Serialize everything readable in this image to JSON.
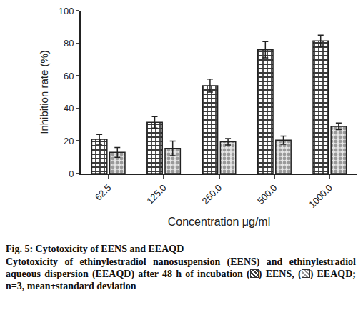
{
  "chart_data": {
    "type": "bar",
    "y_label": "Inhibition rate (%)",
    "x_label": "Concentration μg/ml",
    "categories": [
      "62.5",
      "125.0",
      "250.0",
      "500.0",
      "1000.0"
    ],
    "series": [
      {
        "name": "EENS",
        "color": "#3a3a3a",
        "values": [
          21,
          31.5,
          54,
          76,
          81.5
        ],
        "errors": [
          3,
          3.5,
          4,
          5,
          3.5
        ]
      },
      {
        "name": "EEAQD",
        "color": "#9a9a9a",
        "values": [
          13,
          15.5,
          19.5,
          20.5,
          29
        ],
        "errors": [
          3,
          4.5,
          2,
          2.5,
          2
        ]
      }
    ],
    "ylim": [
      0,
      100
    ],
    "yticks": [
      0,
      20,
      40,
      60,
      80,
      100
    ],
    "grid": false,
    "caption": {
      "title": "Fig. 5: Cytotoxicity of EENS and EEAQD",
      "parts": [
        "Cytotoxicity of ethinylestradiol nanosuspension (EENS) and ethinylestradiol aqueous dispersion (EEAQD) after 48 h of incubation (",
        {
          "swatch": 0
        },
        ") EENS, (",
        {
          "swatch": 1
        },
        ") EEAQD; n=3, mean±standard deviation"
      ]
    }
  }
}
